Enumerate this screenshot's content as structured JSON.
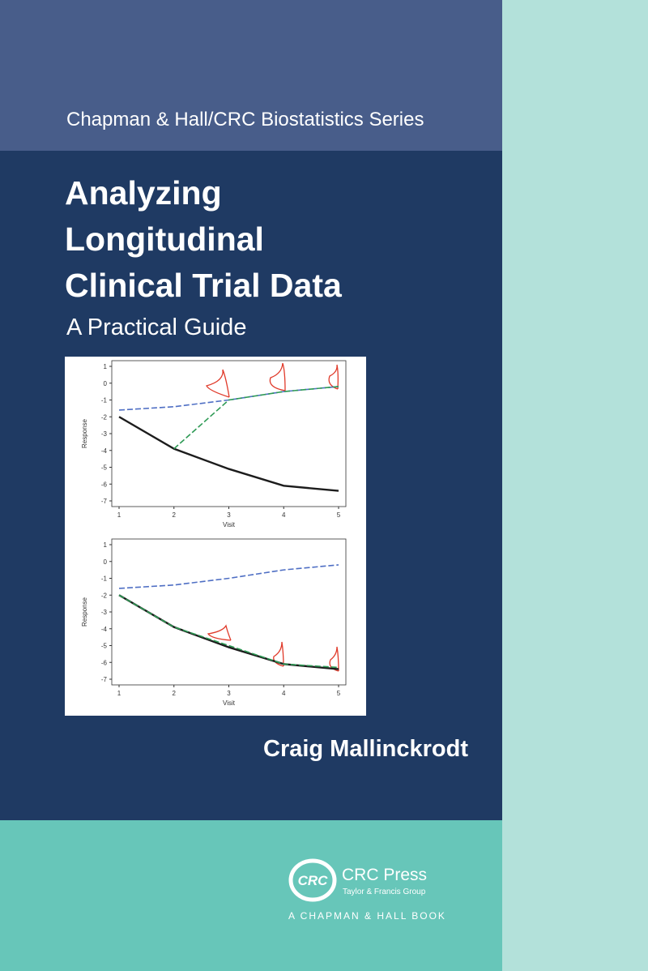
{
  "cover": {
    "series": "Chapman & Hall/CRC Biostatistics Series",
    "title_lines": [
      "Analyzing",
      "Longitudinal",
      "Clinical Trial Data"
    ],
    "subtitle": "A Practical Guide",
    "author": "Craig Mallinckrodt",
    "publisher": {
      "logo": "CRC",
      "name": "CRC Press",
      "group": "Taylor & Francis Group",
      "imprint": "A CHAPMAN & HALL BOOK"
    }
  },
  "chart_data": [
    {
      "type": "line",
      "x_label": "Visit",
      "y_label": "Response",
      "x": [
        1,
        2,
        3,
        4,
        5
      ],
      "xlim": [
        1,
        5
      ],
      "xticks": [
        1,
        2,
        3,
        4,
        5
      ],
      "ylim": [
        -7,
        1
      ],
      "yticks": [
        1,
        0,
        -1,
        -2,
        -3,
        -4,
        -5,
        -6,
        -7
      ],
      "series": [
        {
          "color": "#4f6fc4",
          "dash": true,
          "values": [
            -1.6,
            -1.4,
            -1.0,
            -0.5,
            -0.2
          ]
        },
        {
          "color": "#1c1c1c",
          "dash": false,
          "values": [
            -2.0,
            -3.9,
            -5.1,
            -6.1,
            -6.4
          ]
        },
        {
          "color": "#2e9a55",
          "dash": true,
          "values": [
            null,
            -3.9,
            -1.0,
            -0.5,
            -0.2
          ]
        }
      ]
    },
    {
      "type": "line",
      "x_label": "Visit",
      "y_label": "Response",
      "x": [
        1,
        2,
        3,
        4,
        5
      ],
      "xlim": [
        1,
        5
      ],
      "xticks": [
        1,
        2,
        3,
        4,
        5
      ],
      "ylim": [
        -7,
        1
      ],
      "yticks": [
        1,
        0,
        -1,
        -2,
        -3,
        -4,
        -5,
        -6,
        -7
      ],
      "series": [
        {
          "color": "#4f6fc4",
          "dash": true,
          "values": [
            -1.6,
            -1.4,
            -1.0,
            -0.5,
            -0.2
          ]
        },
        {
          "color": "#1c1c1c",
          "dash": false,
          "values": [
            -2.0,
            -3.9,
            -5.1,
            -6.1,
            -6.4
          ]
        },
        {
          "color": "#2e9a55",
          "dash": true,
          "values": [
            -2.0,
            -3.9,
            -5.0,
            -6.1,
            -6.3
          ]
        }
      ]
    }
  ]
}
